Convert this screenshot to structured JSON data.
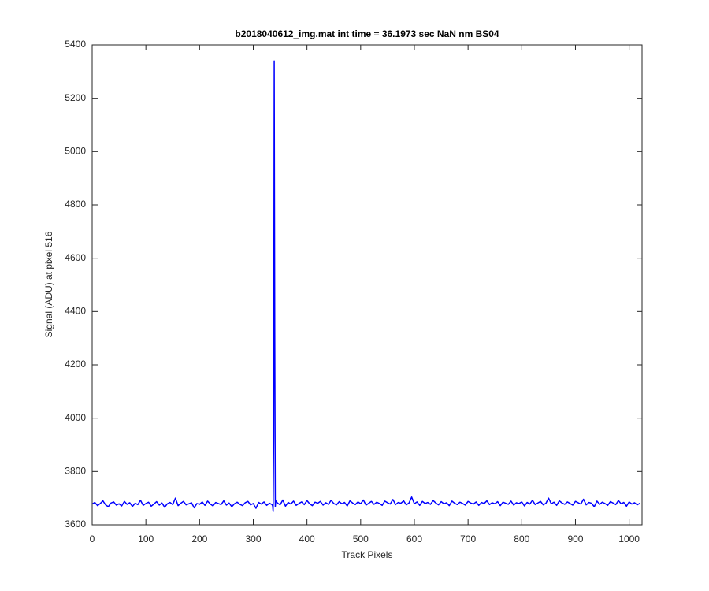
{
  "chart_data": {
    "type": "line",
    "title": "b2018040612_img.mat int time = 36.1973 sec  NaN nm BS04",
    "x_label": "Track Pixels",
    "y_label": "Signal (ADU) at pixel 516",
    "xlim": [
      0,
      1024
    ],
    "ylim": [
      3600,
      5400
    ],
    "xticks": [
      0,
      100,
      200,
      300,
      400,
      500,
      600,
      700,
      800,
      900,
      1000
    ],
    "yticks": [
      3600,
      3800,
      4000,
      4200,
      4400,
      4600,
      4800,
      5000,
      5200,
      5400
    ],
    "grid": false,
    "x": [
      0,
      5,
      10,
      15,
      20,
      25,
      30,
      35,
      40,
      45,
      50,
      55,
      60,
      65,
      70,
      75,
      80,
      85,
      90,
      95,
      100,
      105,
      110,
      115,
      120,
      125,
      130,
      135,
      140,
      145,
      150,
      155,
      160,
      165,
      170,
      175,
      180,
      185,
      190,
      195,
      200,
      205,
      210,
      215,
      220,
      225,
      230,
      235,
      240,
      245,
      250,
      255,
      260,
      265,
      270,
      275,
      280,
      285,
      290,
      295,
      300,
      305,
      310,
      315,
      320,
      325,
      330,
      335,
      336,
      337,
      338,
      339,
      340,
      341,
      342,
      345,
      350,
      355,
      360,
      365,
      370,
      375,
      380,
      385,
      390,
      395,
      400,
      405,
      410,
      415,
      420,
      425,
      430,
      435,
      440,
      445,
      450,
      455,
      460,
      465,
      470,
      475,
      480,
      485,
      490,
      495,
      500,
      505,
      510,
      515,
      520,
      525,
      530,
      535,
      540,
      545,
      550,
      555,
      560,
      565,
      570,
      575,
      580,
      585,
      590,
      595,
      600,
      605,
      610,
      615,
      620,
      625,
      630,
      635,
      640,
      645,
      650,
      655,
      660,
      665,
      670,
      675,
      680,
      685,
      690,
      695,
      700,
      705,
      710,
      715,
      720,
      725,
      730,
      735,
      740,
      745,
      750,
      755,
      760,
      765,
      770,
      775,
      780,
      785,
      790,
      795,
      800,
      805,
      810,
      815,
      820,
      825,
      830,
      835,
      840,
      845,
      850,
      855,
      860,
      865,
      870,
      875,
      880,
      885,
      890,
      895,
      900,
      905,
      910,
      915,
      920,
      925,
      930,
      935,
      940,
      945,
      950,
      955,
      960,
      965,
      970,
      975,
      980,
      985,
      990,
      995,
      1000,
      1005,
      1010,
      1015,
      1020
    ],
    "series": [
      {
        "color": "#0000ff",
        "values": [
          3678,
          3684,
          3672,
          3680,
          3690,
          3675,
          3668,
          3682,
          3686,
          3674,
          3679,
          3671,
          3688,
          3677,
          3683,
          3669,
          3681,
          3676,
          3692,
          3673,
          3680,
          3685,
          3670,
          3678,
          3687,
          3674,
          3682,
          3666,
          3679,
          3684,
          3676,
          3700,
          3672,
          3681,
          3688,
          3675,
          3679,
          3683,
          3664,
          3680,
          3677,
          3686,
          3673,
          3689,
          3678,
          3671,
          3684,
          3680,
          3676,
          3690,
          3674,
          3682,
          3668,
          3679,
          3685,
          3677,
          3672,
          3683,
          3688,
          3675,
          3680,
          3662,
          3684,
          3678,
          3686,
          3673,
          3681,
          3676,
          3671,
          3650,
          3930,
          5340,
          4340,
          3668,
          3690,
          3682,
          3675,
          3693,
          3670,
          3684,
          3678,
          3689,
          3673,
          3680,
          3686,
          3676,
          3691,
          3679,
          3672,
          3685,
          3681,
          3688,
          3674,
          3683,
          3677,
          3692,
          3680,
          3675,
          3687,
          3679,
          3684,
          3671,
          3690,
          3682,
          3676,
          3686,
          3679,
          3693,
          3674,
          3681,
          3688,
          3677,
          3685,
          3680,
          3673,
          3689,
          3683,
          3678,
          3695,
          3676,
          3684,
          3681,
          3690,
          3675,
          3682,
          3704,
          3679,
          3686,
          3673,
          3688,
          3680,
          3684,
          3677,
          3691,
          3682,
          3675,
          3687,
          3679,
          3683,
          3672,
          3689,
          3681,
          3676,
          3685,
          3680,
          3674,
          3688,
          3682,
          3678,
          3686,
          3673,
          3684,
          3680,
          3690,
          3676,
          3683,
          3679,
          3687,
          3672,
          3685,
          3681,
          3677,
          3689,
          3674,
          3683,
          3680,
          3686,
          3671,
          3684,
          3678,
          3692,
          3676,
          3682,
          3688,
          3675,
          3681,
          3700,
          3679,
          3685,
          3673,
          3690,
          3682,
          3677,
          3686,
          3680,
          3674,
          3688,
          3683,
          3678,
          3696,
          3675,
          3684,
          3681,
          3668,
          3689,
          3677,
          3685,
          3680,
          3673,
          3687,
          3682,
          3676,
          3691,
          3679,
          3684,
          3670,
          3686,
          3678,
          3683,
          3675,
          3681
        ]
      }
    ]
  }
}
